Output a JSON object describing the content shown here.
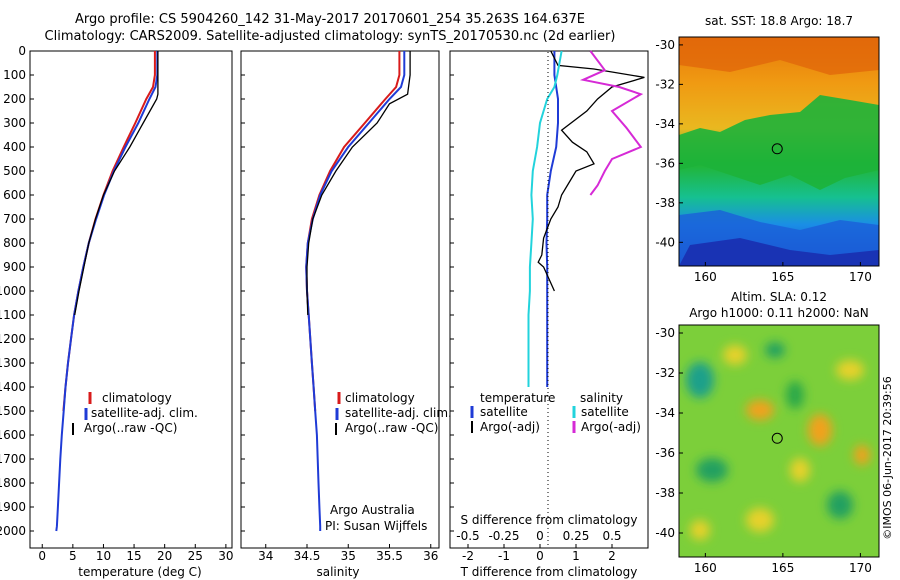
{
  "title_line1": "Argo profile: CS 5904260_142 31-May-2017 20170601_254 35.263S 164.637E",
  "title_line2": "Climatology: CARS2009. Satellite-adjusted climatology: synTS_20170530.nc (2d earlier)",
  "sst_title": "sat. SST: 18.8 Argo: 18.7",
  "sla_title_line1": "Altim. SLA: 0.12",
  "sla_title_line2": "Argo h1000: 0.11 h2000: NaN",
  "timestamp": "©IMOS 06-Jun-2017 20:39:56",
  "credit_line1": "Argo Australia",
  "credit_line2": "PI: Susan Wijffels",
  "colors": {
    "climatology": "#d81b1b",
    "satellite": "#1f3bd6",
    "argo": "#000000",
    "sal_satellite": "#22d3dc",
    "sal_argo": "#d62ad6"
  },
  "chart_data": [
    {
      "type": "line",
      "xlabel": "temperature (deg C)",
      "ylabel": "",
      "xlim": [
        -2,
        31
      ],
      "ylim": [
        2100,
        0
      ],
      "xticks": [
        0,
        5,
        10,
        15,
        20,
        25,
        30
      ],
      "yticks": [
        0,
        100,
        200,
        300,
        400,
        500,
        600,
        700,
        800,
        900,
        1000,
        1100,
        1200,
        1300,
        1400,
        1500,
        1600,
        1700,
        1800,
        1900,
        2000
      ],
      "legend": [
        "climatology",
        "satellite-adj. clim.",
        "Argo(..raw -QC)"
      ],
      "series": [
        {
          "name": "climatology",
          "color": "#d81b1b",
          "x": [
            18.4,
            18.4,
            18.1,
            17.0,
            15.2,
            13.3,
            11.5,
            10.0,
            8.7,
            7.6,
            6.7,
            5.9,
            5.2,
            4.7,
            4.2,
            3.8,
            3.45
          ],
          "y": [
            0,
            100,
            150,
            200,
            300,
            400,
            500,
            600,
            700,
            800,
            900,
            1000,
            1100,
            1200,
            1300,
            1400,
            1500
          ]
        },
        {
          "name": "satellite-adj. clim.",
          "color": "#1f3bd6",
          "x": [
            18.8,
            18.8,
            18.5,
            17.5,
            15.7,
            13.6,
            11.7,
            10.1,
            8.8,
            7.6,
            6.7,
            5.9,
            5.2,
            4.7,
            4.2,
            3.8,
            3.5,
            3.2,
            2.95,
            2.75,
            2.55,
            2.4,
            2.3
          ],
          "y": [
            0,
            100,
            150,
            200,
            300,
            400,
            500,
            600,
            700,
            800,
            900,
            1000,
            1100,
            1200,
            1300,
            1400,
            1500,
            1600,
            1700,
            1800,
            1900,
            1980,
            2000
          ]
        },
        {
          "name": "Argo(..raw -QC)",
          "color": "#000000",
          "x": [
            18.9,
            18.9,
            18.9,
            18.7,
            16.5,
            14.3,
            11.8,
            10.0,
            8.7,
            7.6,
            6.8,
            6.0,
            5.3
          ],
          "y": [
            0,
            100,
            180,
            200,
            300,
            400,
            500,
            600,
            700,
            800,
            900,
            1000,
            1100
          ]
        }
      ]
    },
    {
      "type": "line",
      "xlabel": "salinity",
      "ylabel": "",
      "xlim": [
        33.7,
        36.1
      ],
      "ylim": [
        2100,
        0
      ],
      "xticks": [
        34,
        34.5,
        35,
        35.5,
        36
      ],
      "legend": [
        "climatology",
        "satellite-adj. clim.",
        "Argo(..raw -QC)"
      ],
      "series": [
        {
          "name": "climatology",
          "color": "#d81b1b",
          "x": [
            35.62,
            35.62,
            35.58,
            35.45,
            35.2,
            34.95,
            34.78,
            34.65,
            34.56,
            34.51,
            34.49,
            34.5,
            34.52,
            34.54,
            34.56,
            34.58,
            34.6
          ],
          "y": [
            0,
            100,
            150,
            200,
            300,
            400,
            500,
            600,
            700,
            800,
            900,
            1000,
            1100,
            1200,
            1300,
            1400,
            1500
          ]
        },
        {
          "name": "satellite-adj. clim.",
          "color": "#1f3bd6",
          "x": [
            35.68,
            35.68,
            35.64,
            35.5,
            35.25,
            35.0,
            34.8,
            34.66,
            34.57,
            34.51,
            34.49,
            34.5,
            34.52,
            34.54,
            34.56,
            34.58,
            34.6,
            34.62,
            34.63,
            34.64,
            34.65,
            34.66,
            34.66
          ],
          "y": [
            0,
            100,
            150,
            200,
            300,
            400,
            500,
            600,
            700,
            800,
            900,
            1000,
            1100,
            1200,
            1300,
            1400,
            1500,
            1600,
            1700,
            1800,
            1900,
            1980,
            2000
          ]
        },
        {
          "name": "Argo(..raw -QC)",
          "color": "#000000",
          "x": [
            35.75,
            35.75,
            35.72,
            35.5,
            35.35,
            35.05,
            34.85,
            34.68,
            34.57,
            34.52,
            34.5,
            34.5,
            34.51
          ],
          "y": [
            0,
            100,
            180,
            220,
            300,
            400,
            500,
            600,
            700,
            800,
            900,
            1000,
            1100
          ]
        }
      ]
    },
    {
      "type": "line",
      "xlabel": "T difference from climatology",
      "xlabel2": "S difference from climatology",
      "xlim": [
        -2.5,
        3
      ],
      "ylim": [
        2100,
        0
      ],
      "xticks": [
        -2,
        -1,
        0,
        1,
        2
      ],
      "xticks2": [
        "-0.5",
        "-0.25",
        "0",
        "0.25",
        "0.5"
      ],
      "legend_temperature_title": "temperature",
      "legend_salinity_title": "salinity",
      "legend_temperature": [
        "satellite",
        "Argo(-adj)"
      ],
      "legend_salinity": [
        "satellite",
        "Argo(-adj)"
      ],
      "series": [
        {
          "name": "temperature satellite",
          "color": "#1f3bd6",
          "x": [
            0.4,
            0.4,
            0.45,
            0.5,
            0.5,
            0.45,
            0.3,
            0.2,
            0.2,
            0.18,
            0.2,
            0.2,
            0.2,
            0.2,
            0.2,
            0.2
          ],
          "y": [
            0,
            100,
            150,
            200,
            300,
            400,
            500,
            600,
            700,
            800,
            900,
            1000,
            1100,
            1200,
            1300,
            1400
          ]
        },
        {
          "name": "temperature Argo(-adj)",
          "color": "#000000",
          "x": [
            0.3,
            0.5,
            1.5,
            2.9,
            2.0,
            1.6,
            1.3,
            0.6,
            0.9,
            1.3,
            1.5,
            1.0,
            0.8,
            0.6,
            0.5,
            0.3,
            0.1,
            0.05,
            -0.05,
            0.1,
            0.4
          ],
          "y": [
            0,
            60,
            75,
            110,
            150,
            200,
            250,
            330,
            380,
            420,
            470,
            500,
            550,
            600,
            650,
            700,
            780,
            850,
            880,
            900,
            1000
          ]
        },
        {
          "name": "salinity satellite",
          "color": "#22d3dc",
          "x": [
            0.15,
            0.12,
            0.1,
            0.05,
            0.0,
            -0.02,
            -0.05,
            -0.06,
            -0.05,
            -0.06,
            -0.07,
            -0.07,
            -0.08,
            -0.08,
            -0.08,
            -0.08
          ],
          "y": [
            0,
            100,
            150,
            200,
            300,
            400,
            500,
            600,
            700,
            800,
            900,
            1000,
            1100,
            1200,
            1300,
            1400
          ]
        },
        {
          "name": "salinity Argo(-adj)",
          "color": "#d62ad6",
          "x": [
            0.35,
            0.45,
            0.3,
            0.55,
            0.7,
            0.5,
            0.6,
            0.7,
            0.5,
            0.45,
            0.4,
            0.35
          ],
          "y": [
            0,
            80,
            120,
            150,
            180,
            250,
            320,
            400,
            450,
            500,
            560,
            600
          ]
        }
      ]
    },
    {
      "type": "heatmap",
      "title": "sat. SST: 18.8 Argo: 18.7",
      "xticks": [
        160,
        165,
        170
      ],
      "yticks": [
        -30,
        -32,
        -34,
        -36,
        -38,
        -40
      ],
      "xlim": [
        158.3,
        171.2
      ],
      "ylim": [
        -41.2,
        -29.6
      ],
      "marker": {
        "lon": 164.637,
        "lat": -35.263
      }
    },
    {
      "type": "heatmap",
      "title": "Altim. SLA: 0.12",
      "xticks": [
        160,
        165,
        170
      ],
      "yticks": [
        -30,
        -32,
        -34,
        -36,
        -38,
        -40
      ],
      "xlim": [
        158.3,
        171.2
      ],
      "ylim": [
        -41.2,
        -29.6
      ],
      "marker": {
        "lon": 164.637,
        "lat": -35.263
      }
    }
  ]
}
